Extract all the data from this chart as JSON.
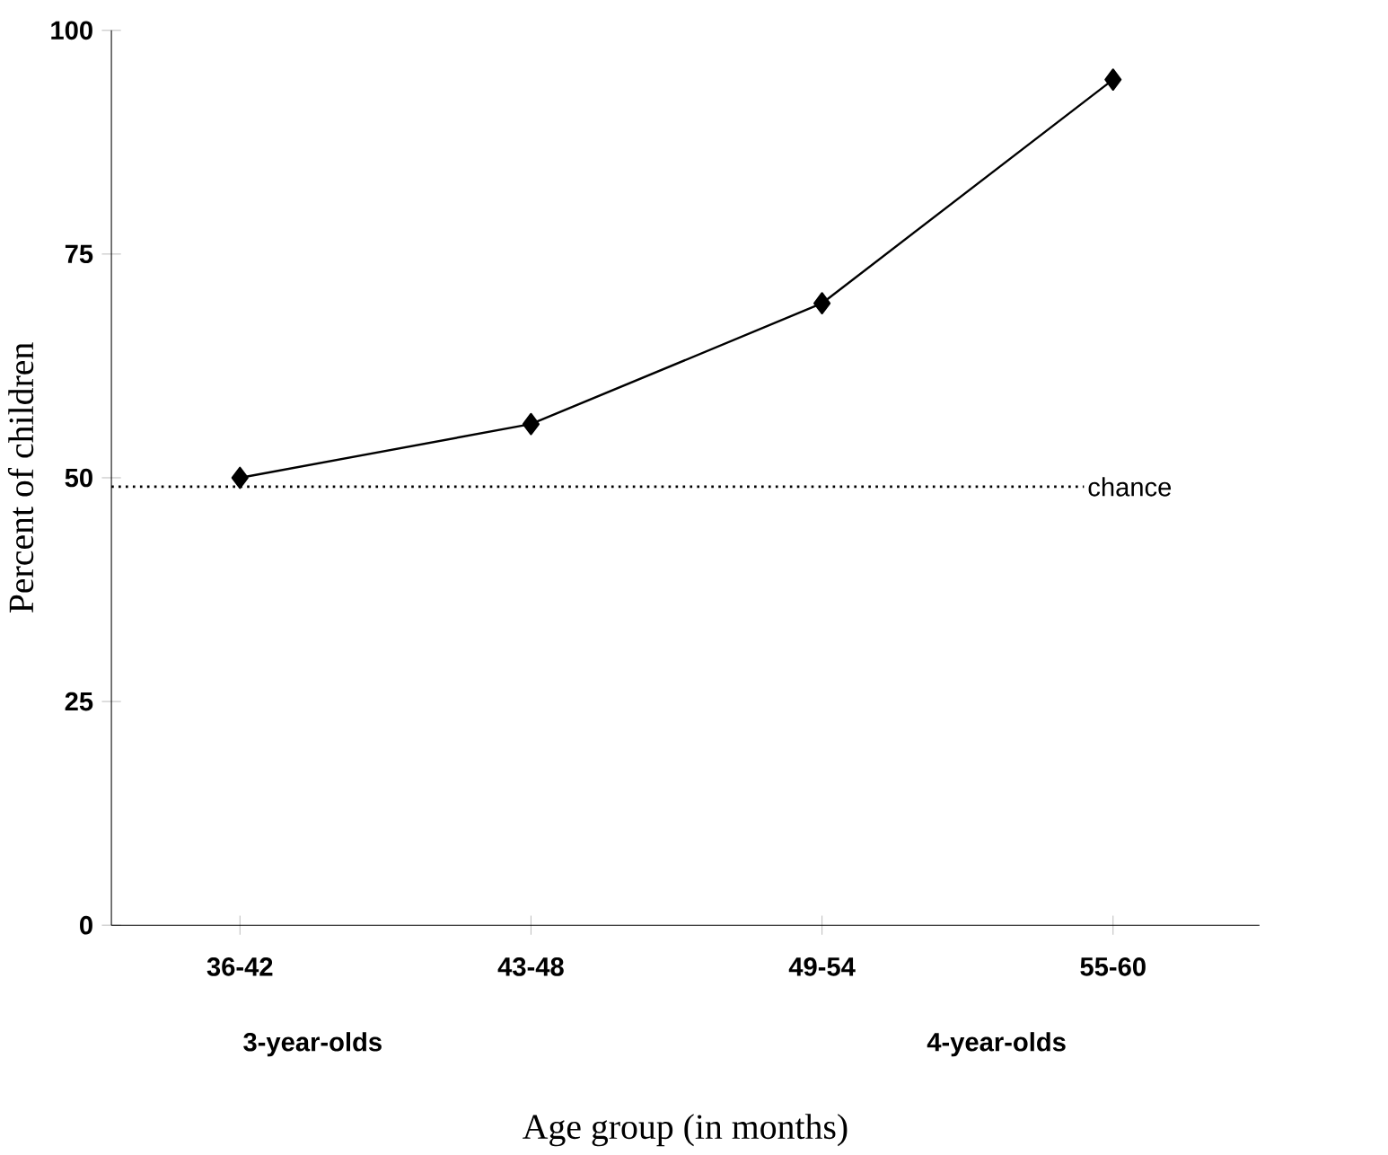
{
  "chart_data": {
    "type": "line",
    "categories": [
      "36-42",
      "43-48",
      "49-54",
      "55-60"
    ],
    "values": [
      50,
      56,
      69.5,
      94.5
    ],
    "color": "#000000",
    "marker": "diamond",
    "line_style": "solid",
    "ylim": [
      0,
      100
    ],
    "yticks": [
      0,
      25,
      50,
      75,
      100
    ],
    "xlabel": "Age group (in months)",
    "ylabel": "Percent of children",
    "ref_lines": [
      {
        "axis": "y",
        "value": 49,
        "label": "chance",
        "line_style": "dotted",
        "color": "#000000"
      }
    ],
    "annotations": [
      "3-year-olds",
      "4-year-olds"
    ],
    "grid": false
  }
}
